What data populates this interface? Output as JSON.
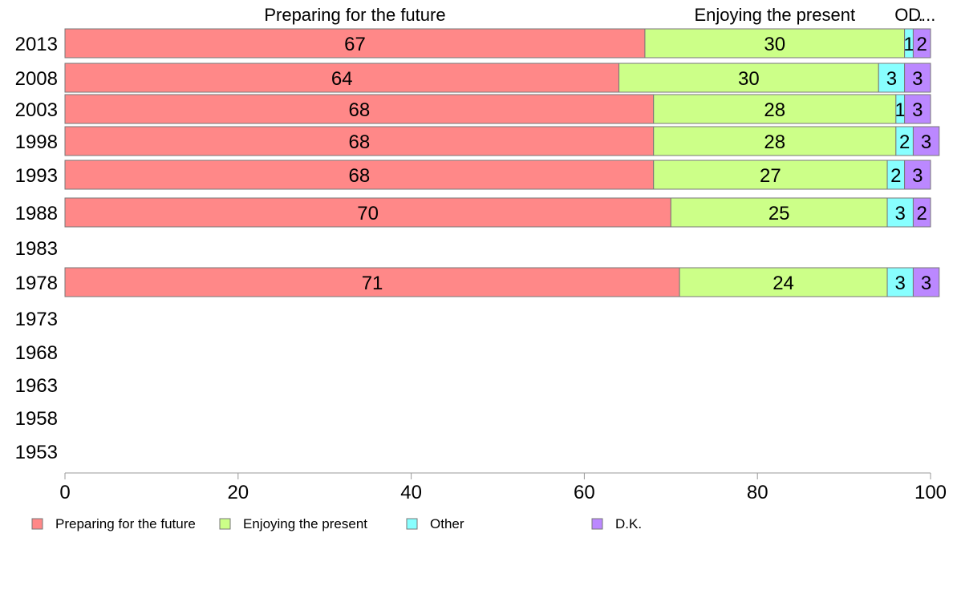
{
  "chart_data": {
    "type": "bar",
    "orientation": "horizontal",
    "stacked": true,
    "categories": [
      "2013",
      "2008",
      "2003",
      "1998",
      "1993",
      "1988",
      "1983",
      "1978",
      "1973",
      "1968",
      "1963",
      "1958",
      "1953"
    ],
    "series": [
      {
        "name": "Preparing for the future",
        "header": "Preparing for the future",
        "color": "#ff8888",
        "values": [
          67,
          64,
          68,
          68,
          68,
          70,
          null,
          71,
          null,
          null,
          null,
          null,
          null
        ]
      },
      {
        "name": "Enjoying the present",
        "header": "Enjoying the present",
        "color": "#ccff88",
        "values": [
          30,
          30,
          28,
          28,
          27,
          25,
          null,
          24,
          null,
          null,
          null,
          null,
          null
        ]
      },
      {
        "name": "Other",
        "header": "O...",
        "color": "#88ffff",
        "values": [
          1,
          3,
          1,
          2,
          2,
          3,
          null,
          3,
          null,
          null,
          null,
          null,
          null
        ]
      },
      {
        "name": "D.K.",
        "header": "D...",
        "color": "#bb88ff",
        "values": [
          2,
          3,
          3,
          3,
          3,
          2,
          null,
          3,
          null,
          null,
          null,
          null,
          null
        ]
      }
    ],
    "xlim": [
      0,
      100
    ],
    "xticks": [
      "0",
      "20",
      "40",
      "60",
      "80",
      "100"
    ],
    "grid": false,
    "legend_position": "bottom"
  }
}
